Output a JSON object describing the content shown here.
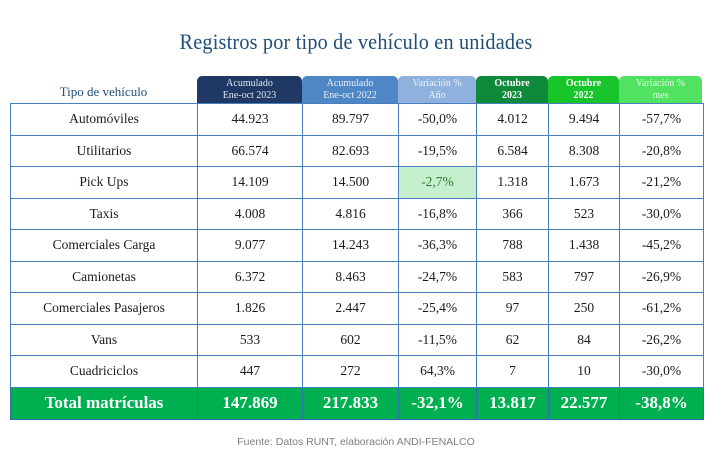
{
  "title": "Registros por tipo de vehículo en unidades",
  "row_header_label": "Tipo de vehículo",
  "columns": [
    {
      "line1": "Acumulado",
      "line2": "Ene-oct 2023",
      "color": "#1f3864"
    },
    {
      "line1": "Acumulado",
      "line2": "Ene-oct 2022",
      "color": "#4f86c6"
    },
    {
      "line1": "Variación %",
      "line2": "Año",
      "color": "#8eb1de"
    },
    {
      "line1": "Octubre",
      "line2": "2023",
      "color": "#0f8a3a"
    },
    {
      "line1": "Octubre",
      "line2": "2022",
      "color": "#17c42a"
    },
    {
      "line1": "Variación %",
      "line2": "mes",
      "color": "#52e262"
    }
  ],
  "rows": [
    {
      "type": "Automóviles",
      "acum_2023": "44.923",
      "acum_2022": "89.797",
      "var_anio": "-50,0%",
      "oct_2023": "4.012",
      "oct_2022": "9.494",
      "var_mes": "-57,7%"
    },
    {
      "type": "Utilitarios",
      "acum_2023": "66.574",
      "acum_2022": "82.693",
      "var_anio": "-19,5%",
      "oct_2023": "6.584",
      "oct_2022": "8.308",
      "var_mes": "-20,8%"
    },
    {
      "type": "Pick Ups",
      "acum_2023": "14.109",
      "acum_2022": "14.500",
      "var_anio": "-2,7%",
      "oct_2023": "1.318",
      "oct_2022": "1.673",
      "var_mes": "-21,2%"
    },
    {
      "type": "Taxis",
      "acum_2023": "4.008",
      "acum_2022": "4.816",
      "var_anio": "-16,8%",
      "oct_2023": "366",
      "oct_2022": "523",
      "var_mes": "-30,0%"
    },
    {
      "type": "Comerciales Carga",
      "acum_2023": "9.077",
      "acum_2022": "14.243",
      "var_anio": "-36,3%",
      "oct_2023": "788",
      "oct_2022": "1.438",
      "var_mes": "-45,2%"
    },
    {
      "type": "Camionetas",
      "acum_2023": "6.372",
      "acum_2022": "8.463",
      "var_anio": "-24,7%",
      "oct_2023": "583",
      "oct_2022": "797",
      "var_mes": "-26,9%"
    },
    {
      "type": "Comerciales Pasajeros",
      "acum_2023": "1.826",
      "acum_2022": "2.447",
      "var_anio": "-25,4%",
      "oct_2023": "97",
      "oct_2022": "250",
      "var_mes": "-61,2%"
    },
    {
      "type": "Vans",
      "acum_2023": "533",
      "acum_2022": "602",
      "var_anio": "-11,5%",
      "oct_2023": "62",
      "oct_2022": "84",
      "var_mes": "-26,2%"
    },
    {
      "type": "Cuadriciclos",
      "acum_2023": "447",
      "acum_2022": "272",
      "var_anio": "64,3%",
      "oct_2023": "7",
      "oct_2022": "10",
      "var_mes": "-30,0%"
    }
  ],
  "highlighted_cell": {
    "row": "Pick Ups",
    "column": "var_anio",
    "color": "#c6efce"
  },
  "total": {
    "type": "Total matrículas",
    "acum_2023": "147.869",
    "acum_2022": "217.833",
    "var_anio": "-32,1%",
    "oct_2023": "13.817",
    "oct_2022": "22.577",
    "var_mes": "-38,8%",
    "color": "#00b050"
  },
  "footer": "Fuente: Datos RUNT, elaboración ANDI-FENALCO",
  "colors": {
    "title": "#1f4e79",
    "border": "#4a7fbf"
  }
}
